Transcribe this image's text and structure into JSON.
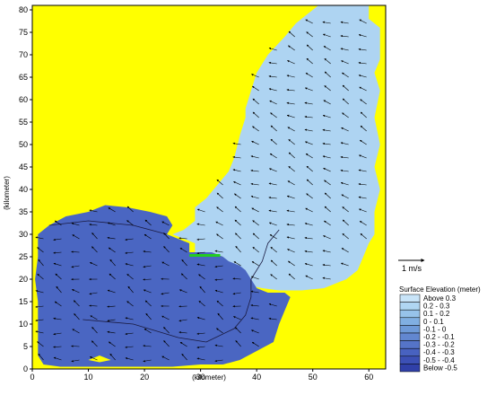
{
  "chart_data": {
    "type": "heatmap",
    "title": "",
    "xlabel": "(kilometer)",
    "ylabel": "(kilometer)",
    "xlim": [
      0,
      63
    ],
    "ylim": [
      0,
      81
    ],
    "x_ticks": [
      0,
      10,
      20,
      30,
      40,
      50,
      60
    ],
    "y_ticks": [
      0,
      5,
      10,
      15,
      20,
      25,
      30,
      35,
      40,
      45,
      50,
      55,
      60,
      65,
      70,
      75,
      80
    ],
    "grid": false,
    "land_color": "#ffff00",
    "vector_scale_label": "1 m/s",
    "legend": {
      "title": "Surface Elevation (meter)",
      "placement": "right",
      "entries": [
        {
          "label": "Above 0.3",
          "color": "#c8e4f8"
        },
        {
          "label": "0.2 -  0.3",
          "color": "#b0d6f2"
        },
        {
          "label": "0.1 -  0.2",
          "color": "#97c3ea"
        },
        {
          "label": "0 -  0.1",
          "color": "#80afe2"
        },
        {
          "label": "-0.1 -  0",
          "color": "#6e9ad8"
        },
        {
          "label": "-0.2 -  -0.1",
          "color": "#6287d0"
        },
        {
          "label": "-0.3 -  -0.2",
          "color": "#5574c8"
        },
        {
          "label": "-0.4 -  -0.3",
          "color": "#4862c0"
        },
        {
          "label": "-0.5 -  -0.4",
          "color": "#3c50b5"
        },
        {
          "label": "Below -0.5",
          "color": "#3040a8"
        }
      ]
    },
    "regions": [
      {
        "color": "#aed4f2",
        "polygon": [
          [
            25,
            30
          ],
          [
            27,
            31
          ],
          [
            28,
            32
          ],
          [
            29,
            33
          ],
          [
            29,
            36
          ],
          [
            31,
            38
          ],
          [
            33,
            41
          ],
          [
            35,
            44
          ],
          [
            36,
            47
          ],
          [
            37,
            52
          ],
          [
            38,
            56
          ],
          [
            38,
            58
          ],
          [
            39,
            62
          ],
          [
            40,
            66
          ],
          [
            42,
            70
          ],
          [
            45,
            74
          ],
          [
            47,
            77
          ],
          [
            49,
            79
          ],
          [
            51,
            81
          ],
          [
            60,
            81
          ],
          [
            60,
            78
          ],
          [
            62,
            76
          ],
          [
            62,
            69
          ],
          [
            61,
            66
          ],
          [
            62,
            62
          ],
          [
            61,
            56
          ],
          [
            62,
            50
          ],
          [
            61,
            45
          ],
          [
            62,
            40
          ],
          [
            61,
            35
          ],
          [
            61,
            30
          ],
          [
            60,
            28
          ],
          [
            59,
            25
          ],
          [
            58,
            22
          ],
          [
            56,
            20
          ],
          [
            52,
            18
          ],
          [
            48,
            17.5
          ],
          [
            44,
            17.5
          ],
          [
            41,
            18
          ],
          [
            37,
            19
          ],
          [
            34,
            20
          ],
          [
            33,
            21
          ],
          [
            33,
            24
          ],
          [
            34,
            25
          ],
          [
            32,
            26
          ],
          [
            29,
            26
          ],
          [
            29,
            28
          ],
          [
            27,
            29
          ]
        ]
      },
      {
        "color": "#4a66c2",
        "polygon": [
          [
            1,
            5
          ],
          [
            1,
            10
          ],
          [
            1,
            15
          ],
          [
            0.5,
            20
          ],
          [
            1,
            25
          ],
          [
            1,
            30
          ],
          [
            3,
            32
          ],
          [
            6,
            34
          ],
          [
            10,
            35
          ],
          [
            13,
            36.5
          ],
          [
            17,
            36
          ],
          [
            21,
            35
          ],
          [
            24,
            34
          ],
          [
            25,
            32
          ],
          [
            24,
            30
          ],
          [
            26,
            29
          ],
          [
            28,
            28
          ],
          [
            28,
            26
          ],
          [
            30,
            26
          ],
          [
            32,
            26
          ],
          [
            34,
            25
          ],
          [
            35,
            24
          ],
          [
            37,
            23
          ],
          [
            38,
            22
          ],
          [
            39,
            20
          ],
          [
            40,
            18
          ],
          [
            42,
            17
          ],
          [
            45,
            17
          ],
          [
            46,
            16
          ],
          [
            45,
            13
          ],
          [
            44,
            10
          ],
          [
            43,
            6
          ],
          [
            40,
            4
          ],
          [
            37,
            2
          ],
          [
            34,
            1
          ],
          [
            30,
            1
          ],
          [
            25,
            0.5
          ],
          [
            15,
            0.5
          ],
          [
            5,
            0.5
          ],
          [
            2,
            1
          ],
          [
            1,
            3
          ]
        ]
      },
      {
        "color": "#ffff00",
        "polygon": [
          [
            10,
            2
          ],
          [
            12,
            3
          ],
          [
            14,
            2
          ],
          [
            12,
            1.5
          ]
        ]
      },
      {
        "color": "#22cc22",
        "polygon": [
          [
            28,
            25
          ],
          [
            33.5,
            25
          ],
          [
            33.5,
            25.6
          ],
          [
            28,
            25.6
          ]
        ]
      }
    ],
    "contours": [
      [
        [
          3,
          32
        ],
        [
          10,
          33
        ],
        [
          18,
          32
        ],
        [
          24,
          30
        ]
      ],
      [
        [
          9,
          11
        ],
        [
          18,
          10
        ],
        [
          26,
          7
        ],
        [
          31,
          6
        ]
      ],
      [
        [
          31,
          6
        ],
        [
          36,
          9
        ],
        [
          38,
          12
        ],
        [
          39,
          16
        ],
        [
          39,
          20
        ]
      ],
      [
        [
          39,
          20
        ],
        [
          41,
          24
        ],
        [
          42,
          28
        ],
        [
          44,
          31
        ]
      ]
    ],
    "vector_field": {
      "x_range": [
        2,
        61
      ],
      "y_range": [
        2,
        79
      ],
      "spacing_x": 3.2,
      "spacing_y": 3.0,
      "dominant_direction_deg": 205
    }
  }
}
